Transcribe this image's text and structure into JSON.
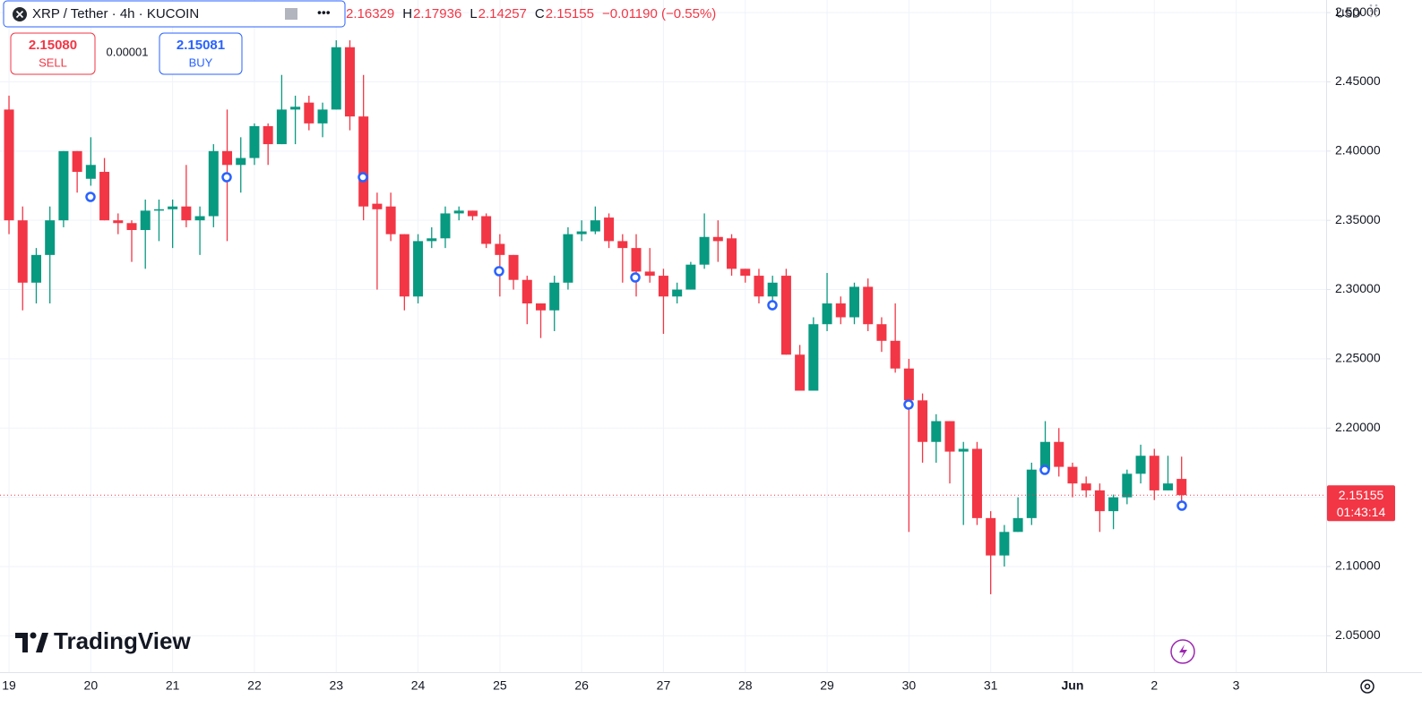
{
  "chart_data": {
    "type": "candlestick",
    "title": "XRP / Tether · 4h · KUCOIN",
    "legend_items": [
      {
        "value": "2.16329"
      },
      {
        "label": "H",
        "value": "2.17936"
      },
      {
        "label": "L",
        "value": "2.14257"
      },
      {
        "label": "C",
        "value": "2.15155"
      },
      {
        "value": "−0.01190 (−0.55%)"
      }
    ],
    "trade": {
      "sell_price": "2.15080",
      "sell_label": "SELL",
      "spread": "0.00001",
      "buy_price": "2.15081",
      "buy_label": "BUY"
    },
    "currency": "USD",
    "brand": "TradingView",
    "up_color": "#089981",
    "down_color": "#f23645",
    "grid": true,
    "xlim": [
      -0.66,
      96.6
    ],
    "xticks": [
      {
        "value": 0,
        "label": "19"
      },
      {
        "value": 6,
        "label": "20"
      },
      {
        "value": 12,
        "label": "21"
      },
      {
        "value": 18,
        "label": "22"
      },
      {
        "value": 24,
        "label": "23"
      },
      {
        "value": 30,
        "label": "24"
      },
      {
        "value": 36,
        "label": "25"
      },
      {
        "value": 42,
        "label": "26"
      },
      {
        "value": 48,
        "label": "27"
      },
      {
        "value": 54,
        "label": "28"
      },
      {
        "value": 60,
        "label": "29"
      },
      {
        "value": 66,
        "label": "30"
      },
      {
        "value": 72,
        "label": "31"
      },
      {
        "value": 78,
        "label": "Jun"
      },
      {
        "value": 84,
        "label": "2"
      },
      {
        "value": 90,
        "label": "3"
      }
    ],
    "ylim": [
      2.0231,
      2.5091
    ],
    "yticks": [
      {
        "value": 2.05,
        "label": "2.05000"
      },
      {
        "value": 2.1,
        "label": "2.10000"
      },
      {
        "value": 2.15,
        "label": "2.15000"
      },
      {
        "value": 2.2,
        "label": "2.20000"
      },
      {
        "value": 2.25,
        "label": "2.25000"
      },
      {
        "value": 2.3,
        "label": "2.30000"
      },
      {
        "value": 2.35,
        "label": "2.35000"
      },
      {
        "value": 2.4,
        "label": "2.40000"
      },
      {
        "value": 2.45,
        "label": "2.45000"
      },
      {
        "value": 2.5,
        "label": "2.50000"
      }
    ],
    "last_price": {
      "value": 2.15155,
      "label": "2.15155"
    },
    "countdown": "01:43:14",
    "open": [
      2.43,
      2.35,
      2.305,
      2.325,
      2.35,
      2.4,
      2.38,
      2.385,
      2.35,
      2.348,
      2.343,
      2.357,
      2.358,
      2.36,
      2.35,
      2.353,
      2.4,
      2.39,
      2.395,
      2.418,
      2.405,
      2.43,
      2.435,
      2.42,
      2.43,
      2.475,
      2.425,
      2.362,
      2.36,
      2.34,
      2.295,
      2.335,
      2.337,
      2.355,
      2.357,
      2.353,
      2.333,
      2.325,
      2.307,
      2.29,
      2.285,
      2.305,
      2.34,
      2.342,
      2.352,
      2.335,
      2.33,
      2.313,
      2.31,
      2.295,
      2.3,
      2.318,
      2.338,
      2.337,
      2.315,
      2.31,
      2.295,
      2.31,
      2.253,
      2.227,
      2.275,
      2.29,
      2.28,
      2.302,
      2.275,
      2.263,
      2.243,
      2.22,
      2.19,
      2.205,
      2.183,
      2.185,
      2.135,
      2.108,
      2.125,
      2.135,
      2.17,
      2.19,
      2.172,
      2.16,
      2.155,
      2.14,
      2.15,
      2.167,
      2.18,
      2.155,
      2.16329
    ],
    "high": [
      2.44,
      2.36,
      2.33,
      2.36,
      2.4,
      2.4,
      2.41,
      2.395,
      2.355,
      2.35,
      2.365,
      2.365,
      2.365,
      2.39,
      2.36,
      2.405,
      2.43,
      2.41,
      2.42,
      2.42,
      2.455,
      2.44,
      2.44,
      2.435,
      2.48,
      2.48,
      2.455,
      2.37,
      2.37,
      2.34,
      2.34,
      2.345,
      2.36,
      2.36,
      2.357,
      2.355,
      2.34,
      2.325,
      2.31,
      2.29,
      2.31,
      2.345,
      2.35,
      2.36,
      2.355,
      2.34,
      2.34,
      2.33,
      2.315,
      2.305,
      2.32,
      2.355,
      2.35,
      2.34,
      2.315,
      2.315,
      2.31,
      2.315,
      2.26,
      2.28,
      2.312,
      2.295,
      2.305,
      2.308,
      2.28,
      2.29,
      2.25,
      2.225,
      2.21,
      2.205,
      2.19,
      2.19,
      2.14,
      2.13,
      2.15,
      2.175,
      2.205,
      2.2,
      2.175,
      2.165,
      2.16,
      2.152,
      2.17,
      2.188,
      2.185,
      2.18,
      2.17936
    ],
    "low": [
      2.34,
      2.285,
      2.29,
      2.29,
      2.345,
      2.37,
      2.375,
      2.35,
      2.34,
      2.32,
      2.315,
      2.335,
      2.33,
      2.345,
      2.325,
      2.345,
      2.335,
      2.37,
      2.39,
      2.39,
      2.405,
      2.405,
      2.415,
      2.41,
      2.43,
      2.415,
      2.35,
      2.3,
      2.335,
      2.285,
      2.29,
      2.33,
      2.33,
      2.35,
      2.35,
      2.33,
      2.295,
      2.3,
      2.275,
      2.265,
      2.27,
      2.3,
      2.335,
      2.34,
      2.33,
      2.305,
      2.295,
      2.305,
      2.268,
      2.29,
      2.3,
      2.315,
      2.32,
      2.31,
      2.305,
      2.29,
      2.285,
      2.253,
      2.227,
      2.227,
      2.27,
      2.275,
      2.275,
      2.27,
      2.255,
      2.24,
      2.125,
      2.175,
      2.175,
      2.16,
      2.13,
      2.13,
      2.08,
      2.1,
      2.125,
      2.13,
      2.17,
      2.165,
      2.15,
      2.15,
      2.125,
      2.127,
      2.145,
      2.16,
      2.148,
      2.155,
      2.14257
    ],
    "close": [
      2.35,
      2.305,
      2.325,
      2.35,
      2.4,
      2.385,
      2.39,
      2.35,
      2.348,
      2.343,
      2.357,
      2.358,
      2.36,
      2.35,
      2.353,
      2.4,
      2.39,
      2.395,
      2.418,
      2.405,
      2.43,
      2.432,
      2.42,
      2.43,
      2.475,
      2.425,
      2.36,
      2.358,
      2.34,
      2.295,
      2.335,
      2.337,
      2.355,
      2.357,
      2.353,
      2.333,
      2.325,
      2.307,
      2.29,
      2.285,
      2.305,
      2.34,
      2.342,
      2.35,
      2.335,
      2.33,
      2.313,
      2.31,
      2.295,
      2.3,
      2.318,
      2.338,
      2.335,
      2.315,
      2.31,
      2.295,
      2.305,
      2.253,
      2.227,
      2.275,
      2.29,
      2.28,
      2.302,
      2.275,
      2.263,
      2.243,
      2.22,
      2.19,
      2.205,
      2.183,
      2.185,
      2.135,
      2.108,
      2.125,
      2.135,
      2.17,
      2.19,
      2.172,
      2.16,
      2.155,
      2.14,
      2.15,
      2.167,
      2.18,
      2.155,
      2.16,
      2.15155
    ]
  }
}
